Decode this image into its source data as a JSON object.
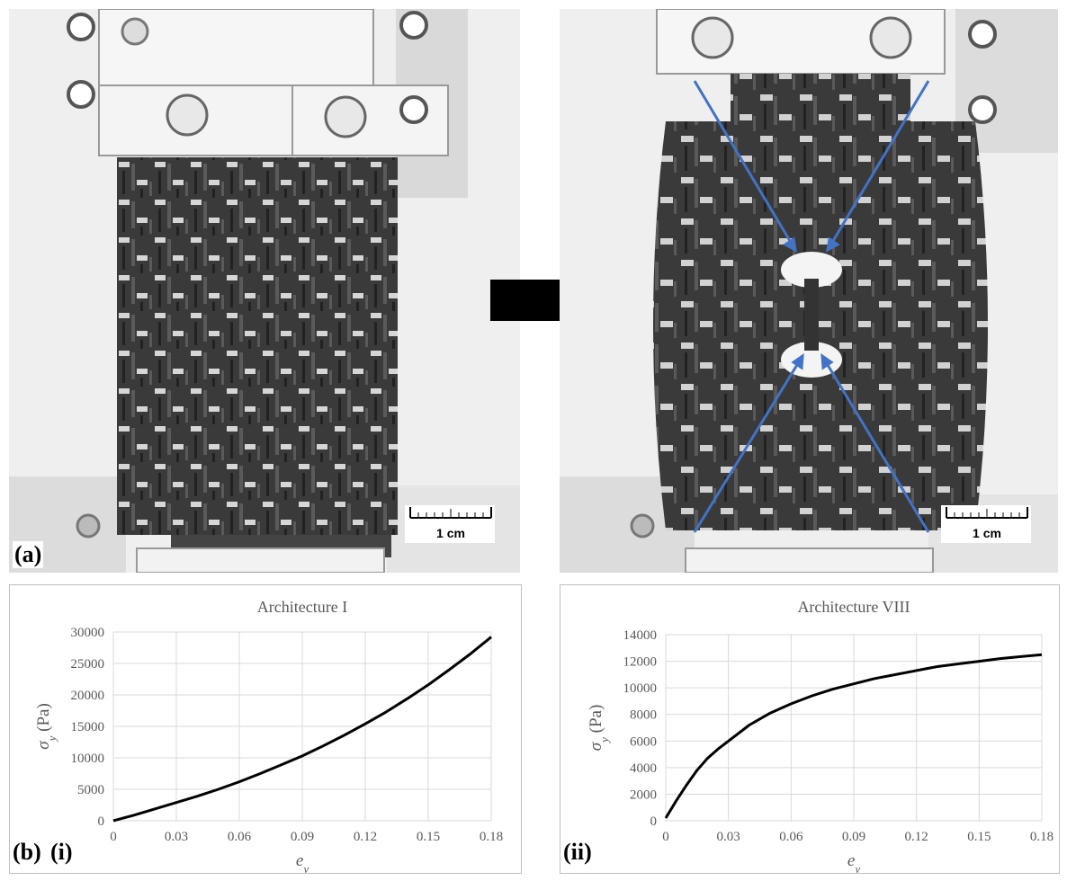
{
  "figure": {
    "label_a": "(a)",
    "label_b": "(b)",
    "label_bi": "(i)",
    "label_bii": "(ii)",
    "scalebar_left": "1 cm",
    "scalebar_right": "1 cm",
    "arrow_color": "#4472c4"
  },
  "chart_data": [
    {
      "type": "line",
      "title": "Architecture I",
      "xlabel": "e",
      "xlabel_sub": "y",
      "ylabel": "σ",
      "ylabel_sub": "y",
      "ylabel_unit": " (Pa)",
      "xlim": [
        0,
        0.18
      ],
      "ylim": [
        0,
        30000
      ],
      "xticks": [
        "0",
        "0.03",
        "0.06",
        "0.09",
        "0.12",
        "0.15",
        "0.18"
      ],
      "yticks": [
        "0",
        "5000",
        "10000",
        "15000",
        "20000",
        "25000",
        "30000"
      ],
      "grid": true,
      "series": [
        {
          "x": [
            0,
            0.01,
            0.02,
            0.03,
            0.04,
            0.05,
            0.06,
            0.07,
            0.08,
            0.09,
            0.1,
            0.11,
            0.12,
            0.13,
            0.14,
            0.15,
            0.16,
            0.17,
            0.18
          ],
          "values": [
            0,
            900,
            1900,
            2900,
            3900,
            5000,
            6200,
            7500,
            8900,
            10300,
            11900,
            13600,
            15400,
            17300,
            19400,
            21600,
            24000,
            26500,
            29200
          ]
        }
      ]
    },
    {
      "type": "line",
      "title": "Architecture VIII",
      "xlabel": "e",
      "xlabel_sub": "y",
      "ylabel": "σ",
      "ylabel_sub": "y",
      "ylabel_unit": " (Pa)",
      "xlim": [
        0,
        0.18
      ],
      "ylim": [
        0,
        14000
      ],
      "xticks": [
        "0",
        "0.03",
        "0.06",
        "0.09",
        "0.12",
        "0.15",
        "0.18"
      ],
      "yticks": [
        "0",
        "2000",
        "4000",
        "6000",
        "8000",
        "10000",
        "12000",
        "14000"
      ],
      "grid": true,
      "series": [
        {
          "x": [
            0,
            0.005,
            0.01,
            0.015,
            0.02,
            0.025,
            0.03,
            0.04,
            0.05,
            0.06,
            0.07,
            0.08,
            0.09,
            0.1,
            0.11,
            0.12,
            0.13,
            0.14,
            0.15,
            0.16,
            0.17,
            0.18
          ],
          "values": [
            200,
            1500,
            2700,
            3800,
            4700,
            5400,
            6000,
            7200,
            8100,
            8800,
            9400,
            9900,
            10300,
            10700,
            11000,
            11300,
            11600,
            11800,
            12000,
            12200,
            12350,
            12500
          ]
        }
      ]
    }
  ]
}
